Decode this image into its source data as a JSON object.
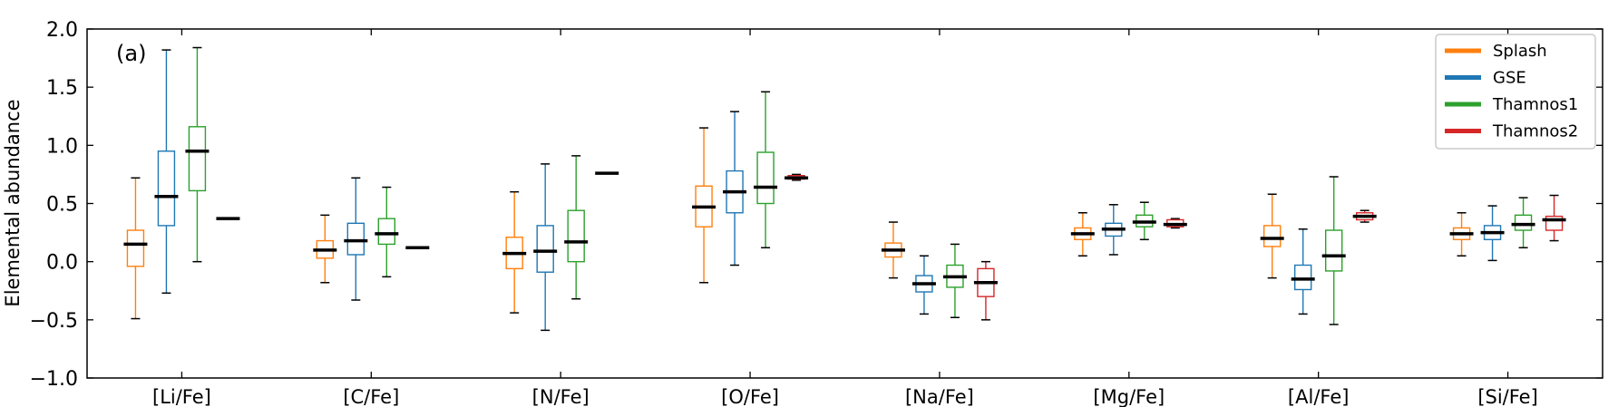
{
  "chart_data": {
    "type": "box",
    "panel_label": "(a)",
    "ylabel": "Elemental abundance",
    "xlabel": "",
    "ylim": [
      -1.0,
      2.0
    ],
    "yticks": [
      {
        "value": 2.0,
        "label": "2.0"
      },
      {
        "value": 1.5,
        "label": "1.5"
      },
      {
        "value": 1.0,
        "label": "1.0"
      },
      {
        "value": 0.5,
        "label": "0.5"
      },
      {
        "value": 0.0,
        "label": "0.0"
      },
      {
        "value": -0.5,
        "label": "−0.5"
      },
      {
        "value": -1.0,
        "label": "−1.0"
      }
    ],
    "categories": [
      "[Li/Fe]",
      "[C/Fe]",
      "[N/Fe]",
      "[O/Fe]",
      "[Na/Fe]",
      "[Mg/Fe]",
      "[Al/Fe]",
      "[Si/Fe]"
    ],
    "legend_position": "top-right",
    "series": [
      {
        "name": "Splash",
        "color": "#ff7f0e",
        "boxes": [
          {
            "min": -0.49,
            "q1": -0.04,
            "median": 0.15,
            "q3": 0.27,
            "max": 0.72
          },
          {
            "min": -0.18,
            "q1": 0.03,
            "median": 0.1,
            "q3": 0.18,
            "max": 0.4
          },
          {
            "min": -0.44,
            "q1": -0.06,
            "median": 0.07,
            "q3": 0.21,
            "max": 0.6
          },
          {
            "min": -0.18,
            "q1": 0.3,
            "median": 0.47,
            "q3": 0.65,
            "max": 1.15
          },
          {
            "min": -0.14,
            "q1": 0.04,
            "median": 0.1,
            "q3": 0.16,
            "max": 0.34
          },
          {
            "min": 0.05,
            "q1": 0.19,
            "median": 0.24,
            "q3": 0.29,
            "max": 0.42
          },
          {
            "min": -0.14,
            "q1": 0.13,
            "median": 0.2,
            "q3": 0.31,
            "max": 0.58
          },
          {
            "min": 0.05,
            "q1": 0.19,
            "median": 0.24,
            "q3": 0.29,
            "max": 0.42
          }
        ]
      },
      {
        "name": "GSE",
        "color": "#1f77b4",
        "boxes": [
          {
            "min": -0.27,
            "q1": 0.31,
            "median": 0.56,
            "q3": 0.95,
            "max": 1.82
          },
          {
            "min": -0.33,
            "q1": 0.06,
            "median": 0.18,
            "q3": 0.33,
            "max": 0.72
          },
          {
            "min": -0.59,
            "q1": -0.09,
            "median": 0.09,
            "q3": 0.31,
            "max": 0.84
          },
          {
            "min": -0.03,
            "q1": 0.42,
            "median": 0.6,
            "q3": 0.78,
            "max": 1.29
          },
          {
            "min": -0.45,
            "q1": -0.26,
            "median": -0.19,
            "q3": -0.12,
            "max": 0.05
          },
          {
            "min": 0.06,
            "q1": 0.22,
            "median": 0.28,
            "q3": 0.33,
            "max": 0.49
          },
          {
            "min": -0.45,
            "q1": -0.24,
            "median": -0.15,
            "q3": -0.03,
            "max": 0.28
          },
          {
            "min": 0.01,
            "q1": 0.19,
            "median": 0.25,
            "q3": 0.31,
            "max": 0.48
          }
        ]
      },
      {
        "name": "Thamnos1",
        "color": "#2ca02c",
        "boxes": [
          {
            "min": 0.0,
            "q1": 0.61,
            "median": 0.95,
            "q3": 1.16,
            "max": 1.84
          },
          {
            "min": -0.13,
            "q1": 0.15,
            "median": 0.24,
            "q3": 0.37,
            "max": 0.64
          },
          {
            "min": -0.32,
            "q1": 0.0,
            "median": 0.17,
            "q3": 0.44,
            "max": 0.91
          },
          {
            "min": 0.12,
            "q1": 0.5,
            "median": 0.64,
            "q3": 0.94,
            "max": 1.46
          },
          {
            "min": -0.48,
            "q1": -0.22,
            "median": -0.13,
            "q3": -0.03,
            "max": 0.15
          },
          {
            "min": 0.19,
            "q1": 0.3,
            "median": 0.34,
            "q3": 0.4,
            "max": 0.51
          },
          {
            "min": -0.54,
            "q1": -0.08,
            "median": 0.05,
            "q3": 0.27,
            "max": 0.73
          },
          {
            "min": 0.12,
            "q1": 0.27,
            "median": 0.32,
            "q3": 0.4,
            "max": 0.55
          }
        ]
      },
      {
        "name": "Thamnos2",
        "color": "#d62728",
        "boxes": [
          {
            "min": 0.37,
            "q1": 0.37,
            "median": 0.37,
            "q3": 0.37,
            "max": 0.37
          },
          {
            "min": 0.12,
            "q1": 0.12,
            "median": 0.12,
            "q3": 0.12,
            "max": 0.12
          },
          {
            "min": 0.76,
            "q1": 0.76,
            "median": 0.76,
            "q3": 0.76,
            "max": 0.76
          },
          {
            "min": 0.7,
            "q1": 0.71,
            "median": 0.72,
            "q3": 0.74,
            "max": 0.75
          },
          {
            "min": -0.5,
            "q1": -0.3,
            "median": -0.18,
            "q3": -0.06,
            "max": 0.0
          },
          {
            "min": 0.29,
            "q1": 0.3,
            "median": 0.32,
            "q3": 0.36,
            "max": 0.37
          },
          {
            "min": 0.34,
            "q1": 0.36,
            "median": 0.39,
            "q3": 0.42,
            "max": 0.44
          },
          {
            "min": 0.18,
            "q1": 0.27,
            "median": 0.36,
            "q3": 0.39,
            "max": 0.57
          }
        ]
      }
    ]
  }
}
